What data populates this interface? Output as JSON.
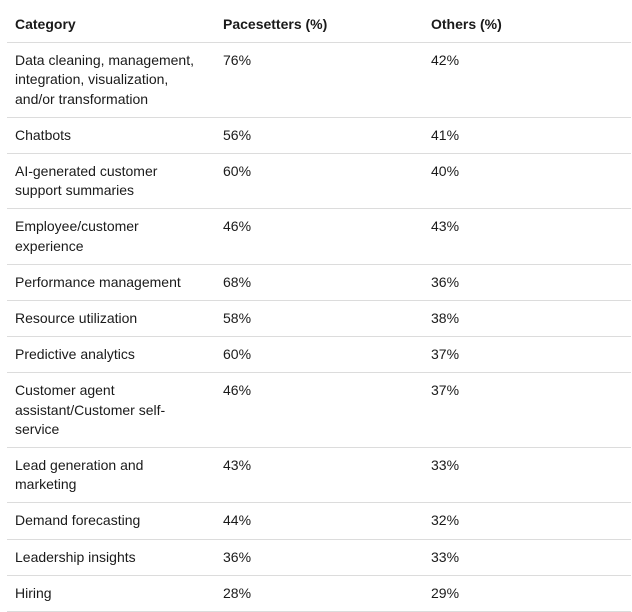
{
  "table": {
    "headers": [
      "Category",
      "Pacesetters (%)",
      "Others (%)"
    ],
    "rows": [
      [
        "Data cleaning, management, integration, visualization, and/or transformation",
        "76%",
        "42%"
      ],
      [
        "Chatbots",
        "56%",
        "41%"
      ],
      [
        "AI-generated customer support summaries",
        "60%",
        "40%"
      ],
      [
        "Employee/customer experience",
        "46%",
        "43%"
      ],
      [
        "Performance management",
        "68%",
        "36%"
      ],
      [
        "Resource utilization",
        "58%",
        "38%"
      ],
      [
        "Predictive analytics",
        "60%",
        "37%"
      ],
      [
        "Customer agent assistant/Customer self-service",
        "46%",
        "37%"
      ],
      [
        "Lead generation and marketing",
        "43%",
        "33%"
      ],
      [
        "Demand forecasting",
        "44%",
        "32%"
      ],
      [
        "Leadership insights",
        "36%",
        "33%"
      ],
      [
        "Hiring",
        "28%",
        "29%"
      ]
    ]
  }
}
